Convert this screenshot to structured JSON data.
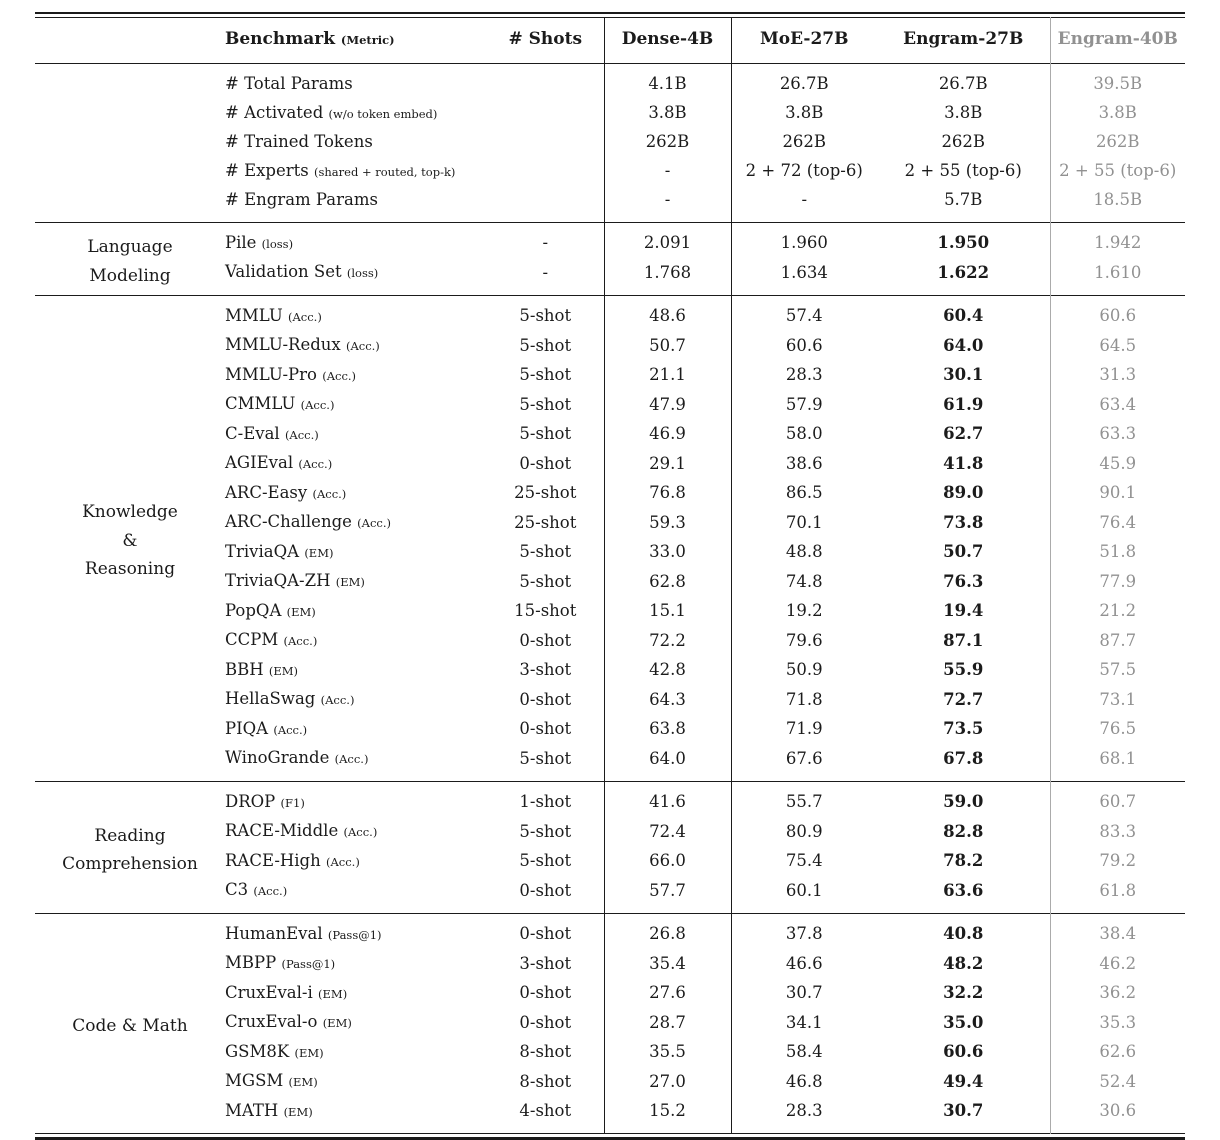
{
  "table": {
    "colors": {
      "text": "#1b1b1b",
      "muted_column": "#919191",
      "rule": "#1b1b1b",
      "rule_muted": "#ababab",
      "background": "#ffffff"
    },
    "header": {
      "benchmark": "Benchmark",
      "benchmark_metric": "(Metric)",
      "shots": "# Shots",
      "columns": [
        "Dense-4B",
        "MoE-27B",
        "Engram-27B",
        "Engram-40B"
      ]
    },
    "sections": [
      {
        "id": "model-config",
        "group_lines": [],
        "bold_engram": false,
        "rows": [
          {
            "benchmark": "# Total Params",
            "metric": "",
            "shots": "",
            "values": [
              "4.1B",
              "26.7B",
              "26.7B",
              "39.5B"
            ]
          },
          {
            "benchmark": "# Activated",
            "metric": "(w/o token embed)",
            "shots": "",
            "values": [
              "3.8B",
              "3.8B",
              "3.8B",
              "3.8B"
            ]
          },
          {
            "benchmark": "# Trained Tokens",
            "metric": "",
            "shots": "",
            "values": [
              "262B",
              "262B",
              "262B",
              "262B"
            ]
          },
          {
            "benchmark": "# Experts",
            "metric": "(shared + routed, top-k)",
            "shots": "",
            "values": [
              "-",
              "2 + 72 (top-6)",
              "2 + 55 (top-6)",
              "2 + 55 (top-6)"
            ]
          },
          {
            "benchmark": "# Engram Params",
            "metric": "",
            "shots": "",
            "values": [
              "-",
              "-",
              "5.7B",
              "18.5B"
            ]
          }
        ]
      },
      {
        "id": "language-modeling",
        "group_lines": [
          "Language",
          "Modeling"
        ],
        "bold_engram": true,
        "rows": [
          {
            "benchmark": "Pile",
            "metric": "(loss)",
            "shots": "-",
            "values": [
              "2.091",
              "1.960",
              "1.950",
              "1.942"
            ]
          },
          {
            "benchmark": "Validation Set",
            "metric": "(loss)",
            "shots": "-",
            "values": [
              "1.768",
              "1.634",
              "1.622",
              "1.610"
            ]
          }
        ]
      },
      {
        "id": "knowledge-reasoning",
        "group_lines": [
          "Knowledge",
          "&",
          "Reasoning"
        ],
        "bold_engram": true,
        "rows": [
          {
            "benchmark": "MMLU",
            "metric": "(Acc.)",
            "shots": "5-shot",
            "values": [
              "48.6",
              "57.4",
              "60.4",
              "60.6"
            ]
          },
          {
            "benchmark": "MMLU-Redux",
            "metric": "(Acc.)",
            "shots": "5-shot",
            "values": [
              "50.7",
              "60.6",
              "64.0",
              "64.5"
            ]
          },
          {
            "benchmark": "MMLU-Pro",
            "metric": "(Acc.)",
            "shots": "5-shot",
            "values": [
              "21.1",
              "28.3",
              "30.1",
              "31.3"
            ]
          },
          {
            "benchmark": "CMMLU",
            "metric": "(Acc.)",
            "shots": "5-shot",
            "values": [
              "47.9",
              "57.9",
              "61.9",
              "63.4"
            ]
          },
          {
            "benchmark": "C-Eval",
            "metric": "(Acc.)",
            "shots": "5-shot",
            "values": [
              "46.9",
              "58.0",
              "62.7",
              "63.3"
            ]
          },
          {
            "benchmark": "AGIEval",
            "metric": "(Acc.)",
            "shots": "0-shot",
            "values": [
              "29.1",
              "38.6",
              "41.8",
              "45.9"
            ]
          },
          {
            "benchmark": "ARC-Easy",
            "metric": "(Acc.)",
            "shots": "25-shot",
            "values": [
              "76.8",
              "86.5",
              "89.0",
              "90.1"
            ]
          },
          {
            "benchmark": "ARC-Challenge",
            "metric": "(Acc.)",
            "shots": "25-shot",
            "values": [
              "59.3",
              "70.1",
              "73.8",
              "76.4"
            ]
          },
          {
            "benchmark": "TriviaQA",
            "metric": "(EM)",
            "shots": "5-shot",
            "values": [
              "33.0",
              "48.8",
              "50.7",
              "51.8"
            ]
          },
          {
            "benchmark": "TriviaQA-ZH",
            "metric": "(EM)",
            "shots": "5-shot",
            "values": [
              "62.8",
              "74.8",
              "76.3",
              "77.9"
            ]
          },
          {
            "benchmark": "PopQA",
            "metric": "(EM)",
            "shots": "15-shot",
            "values": [
              "15.1",
              "19.2",
              "19.4",
              "21.2"
            ]
          },
          {
            "benchmark": "CCPM",
            "metric": "(Acc.)",
            "shots": "0-shot",
            "values": [
              "72.2",
              "79.6",
              "87.1",
              "87.7"
            ]
          },
          {
            "benchmark": "BBH",
            "metric": "(EM)",
            "shots": "3-shot",
            "values": [
              "42.8",
              "50.9",
              "55.9",
              "57.5"
            ]
          },
          {
            "benchmark": "HellaSwag",
            "metric": "(Acc.)",
            "shots": "0-shot",
            "values": [
              "64.3",
              "71.8",
              "72.7",
              "73.1"
            ]
          },
          {
            "benchmark": "PIQA",
            "metric": "(Acc.)",
            "shots": "0-shot",
            "values": [
              "63.8",
              "71.9",
              "73.5",
              "76.5"
            ]
          },
          {
            "benchmark": "WinoGrande",
            "metric": "(Acc.)",
            "shots": "5-shot",
            "values": [
              "64.0",
              "67.6",
              "67.8",
              "68.1"
            ]
          }
        ]
      },
      {
        "id": "reading-comprehension",
        "group_lines": [
          "Reading",
          "Comprehension"
        ],
        "bold_engram": true,
        "rows": [
          {
            "benchmark": "DROP",
            "metric": "(F1)",
            "shots": "1-shot",
            "values": [
              "41.6",
              "55.7",
              "59.0",
              "60.7"
            ]
          },
          {
            "benchmark": "RACE-Middle",
            "metric": "(Acc.)",
            "shots": "5-shot",
            "values": [
              "72.4",
              "80.9",
              "82.8",
              "83.3"
            ]
          },
          {
            "benchmark": "RACE-High",
            "metric": "(Acc.)",
            "shots": "5-shot",
            "values": [
              "66.0",
              "75.4",
              "78.2",
              "79.2"
            ]
          },
          {
            "benchmark": "C3",
            "metric": "(Acc.)",
            "shots": "0-shot",
            "values": [
              "57.7",
              "60.1",
              "63.6",
              "61.8"
            ]
          }
        ]
      },
      {
        "id": "code-math",
        "group_lines": [
          "Code & Math"
        ],
        "bold_engram": true,
        "rows": [
          {
            "benchmark": "HumanEval",
            "metric": "(Pass@1)",
            "shots": "0-shot",
            "values": [
              "26.8",
              "37.8",
              "40.8",
              "38.4"
            ]
          },
          {
            "benchmark": "MBPP",
            "metric": "(Pass@1)",
            "shots": "3-shot",
            "values": [
              "35.4",
              "46.6",
              "48.2",
              "46.2"
            ]
          },
          {
            "benchmark": "CruxEval-i",
            "metric": "(EM)",
            "shots": "0-shot",
            "values": [
              "27.6",
              "30.7",
              "32.2",
              "36.2"
            ]
          },
          {
            "benchmark": "CruxEval-o",
            "metric": "(EM)",
            "shots": "0-shot",
            "values": [
              "28.7",
              "34.1",
              "35.0",
              "35.3"
            ]
          },
          {
            "benchmark": "GSM8K",
            "metric": "(EM)",
            "shots": "8-shot",
            "values": [
              "35.5",
              "58.4",
              "60.6",
              "62.6"
            ]
          },
          {
            "benchmark": "MGSM",
            "metric": "(EM)",
            "shots": "8-shot",
            "values": [
              "27.0",
              "46.8",
              "49.4",
              "52.4"
            ]
          },
          {
            "benchmark": "MATH",
            "metric": "(EM)",
            "shots": "4-shot",
            "values": [
              "15.2",
              "28.3",
              "30.7",
              "30.6"
            ]
          }
        ]
      }
    ]
  }
}
